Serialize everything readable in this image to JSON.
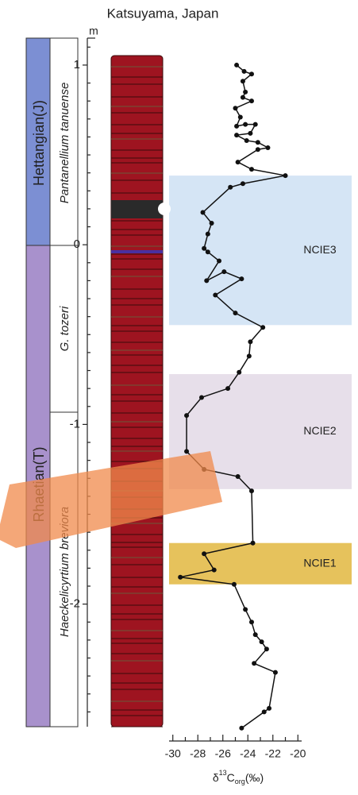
{
  "chart_data": {
    "type": "line",
    "title": "Katsuyama, Japan",
    "y_unit": "m",
    "x_label": {
      "delta": "δ",
      "sup": "13",
      "main": "C",
      "sub": "org",
      "unit": "(‰)"
    },
    "stages": [
      "Hettangian(J)",
      "Rhaetian(T)"
    ],
    "zones": [
      "Pantanellium tanuense",
      "G. tozeri",
      "Haeckelicyrtium breviora"
    ],
    "xlim": [
      -30.3,
      -19.7
    ],
    "xticks": [
      -30,
      -28,
      -26,
      -24,
      -22,
      -20
    ],
    "ylim": [
      -2.7,
      1.15
    ],
    "yticks": [
      1,
      0,
      -1,
      -2
    ],
    "bands": [
      {
        "label": "NCIE3",
        "top": 0.385,
        "bottom": -0.447,
        "color": "#d5e5f5"
      },
      {
        "label": "NCIE2",
        "top": -0.72,
        "bottom": -1.36,
        "color": "#e7dfea"
      },
      {
        "label": "NCIE1",
        "top": -1.66,
        "bottom": -1.89,
        "color": "#e6c25c"
      }
    ],
    "series": [
      {
        "color": "#111111",
        "x": [
          -24.9,
          -24.3,
          -23.7,
          -24.4,
          -24.2,
          -24.4,
          -23.7,
          -25.0,
          -24.6,
          -24.9,
          -24.2,
          -23.4,
          -23.8,
          -24.9,
          -24.1,
          -23.2,
          -22.4,
          -23.2,
          -24.8,
          -23.7,
          -21.0,
          -24.4,
          -25.4,
          -27.6,
          -26.9,
          -27.2,
          -27.5,
          -27.2,
          -26.3,
          -27.3,
          -25.9,
          -24.5,
          -26.6,
          -25.0,
          -22.8,
          -23.8,
          -23.9,
          -24.7,
          -25.6,
          -27.7,
          -28.9,
          -28.9,
          -27.5,
          -24.8,
          -23.7,
          -23.6,
          -27.5,
          -26.7,
          -29.4,
          -25.1,
          -24.2,
          -23.7,
          -23.4,
          -22.9,
          -22.5,
          -23.5,
          -21.8,
          -22.3,
          -22.7,
          -24.5
        ],
        "values": [
          1.0,
          0.965,
          0.95,
          0.91,
          0.85,
          0.82,
          0.8,
          0.76,
          0.71,
          0.66,
          0.67,
          0.67,
          0.62,
          0.61,
          0.58,
          0.57,
          0.54,
          0.53,
          0.46,
          0.42,
          0.385,
          0.34,
          0.32,
          0.18,
          0.12,
          0.06,
          -0.02,
          -0.04,
          -0.09,
          -0.2,
          -0.15,
          -0.19,
          -0.28,
          -0.38,
          -0.46,
          -0.54,
          -0.62,
          -0.71,
          -0.8,
          -0.85,
          -0.95,
          -1.15,
          -1.25,
          -1.29,
          -1.37,
          -1.66,
          -1.72,
          -1.81,
          -1.85,
          -1.89,
          -2.03,
          -2.1,
          -2.17,
          -2.21,
          -2.25,
          -2.33,
          -2.38,
          -2.58,
          -2.6,
          -2.69
        ]
      }
    ]
  }
}
